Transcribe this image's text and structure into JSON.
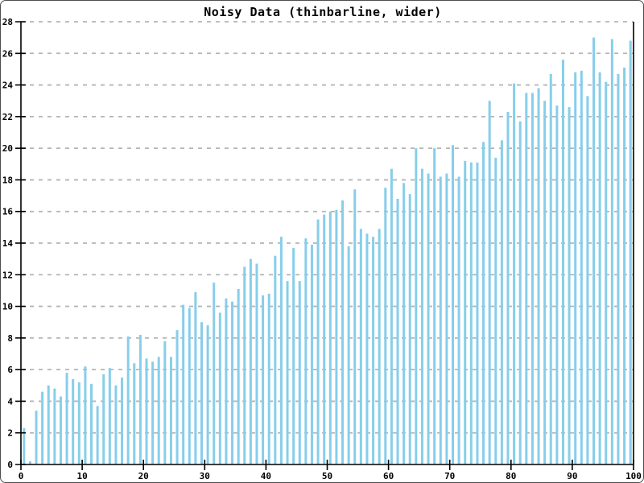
{
  "window": {
    "background": "#ffffff",
    "border_color": "#4d4d4d"
  },
  "chart_data": {
    "type": "bar",
    "title": "Noisy Data (thinbarline, wider)",
    "xlabel": "",
    "ylabel": "",
    "xlim": [
      0,
      100
    ],
    "ylim": [
      0,
      28
    ],
    "xticks": [
      0,
      10,
      20,
      30,
      40,
      50,
      60,
      70,
      80,
      90,
      100
    ],
    "yticks": [
      0,
      2,
      4,
      6,
      8,
      10,
      12,
      14,
      16,
      18,
      20,
      22,
      24,
      26,
      28
    ],
    "grid": "horizontal-dashed",
    "legend_position": "none",
    "bar_style": "thin-vertical-lines",
    "bar_color": "#87CEEB",
    "axis_color": "#000000",
    "grid_color": "#b5b5b5",
    "x": [
      0.5,
      1.5,
      2.5,
      3.5,
      4.5,
      5.5,
      6.5,
      7.5,
      8.5,
      9.5,
      10.5,
      11.5,
      12.5,
      13.5,
      14.5,
      15.5,
      16.5,
      17.5,
      18.5,
      19.5,
      20.5,
      21.5,
      22.5,
      23.5,
      24.5,
      25.5,
      26.5,
      27.5,
      28.5,
      29.5,
      30.5,
      31.5,
      32.5,
      33.5,
      34.5,
      35.5,
      36.5,
      37.5,
      38.5,
      39.5,
      40.5,
      41.5,
      42.5,
      43.5,
      44.5,
      45.5,
      46.5,
      47.5,
      48.5,
      49.5,
      50.5,
      51.5,
      52.5,
      53.5,
      54.5,
      55.5,
      56.5,
      57.5,
      58.5,
      59.5,
      60.5,
      61.5,
      62.5,
      63.5,
      64.5,
      65.5,
      66.5,
      67.5,
      68.5,
      69.5,
      70.5,
      71.5,
      72.5,
      73.5,
      74.5,
      75.5,
      76.5,
      77.5,
      78.5,
      79.5,
      80.5,
      81.5,
      82.5,
      83.5,
      84.5,
      85.5,
      86.5,
      87.5,
      88.5,
      89.5,
      90.5,
      91.5,
      92.5,
      93.5,
      94.5,
      95.5,
      96.5,
      97.5,
      98.5,
      99.5
    ],
    "values": [
      2.3,
      0.2,
      3.4,
      4.6,
      5.0,
      4.8,
      4.3,
      5.8,
      5.4,
      5.2,
      6.2,
      5.1,
      3.7,
      5.7,
      6.1,
      5.0,
      5.5,
      8.1,
      6.4,
      8.2,
      6.7,
      6.5,
      6.8,
      7.8,
      6.8,
      8.5,
      10.1,
      9.9,
      10.9,
      9.0,
      8.8,
      11.5,
      9.6,
      10.5,
      10.3,
      11.1,
      12.5,
      13.0,
      12.7,
      10.7,
      10.8,
      13.2,
      14.4,
      11.6,
      13.7,
      11.6,
      14.3,
      13.9,
      15.5,
      15.8,
      16.0,
      16.1,
      16.7,
      13.8,
      17.4,
      14.9,
      14.6,
      14.4,
      14.9,
      17.5,
      18.7,
      16.8,
      17.8,
      17.1,
      20.0,
      18.7,
      18.4,
      20.0,
      18.2,
      18.4,
      20.2,
      18.2,
      19.2,
      19.1,
      19.1,
      20.4,
      23.0,
      19.4,
      20.5,
      22.3,
      24.1,
      21.7,
      23.5,
      23.5,
      23.8,
      23.0,
      24.7,
      22.7,
      25.6,
      22.6,
      24.8,
      24.9,
      23.3,
      27.0,
      24.8,
      24.2,
      26.9,
      24.7,
      25.1,
      26.8
    ]
  }
}
